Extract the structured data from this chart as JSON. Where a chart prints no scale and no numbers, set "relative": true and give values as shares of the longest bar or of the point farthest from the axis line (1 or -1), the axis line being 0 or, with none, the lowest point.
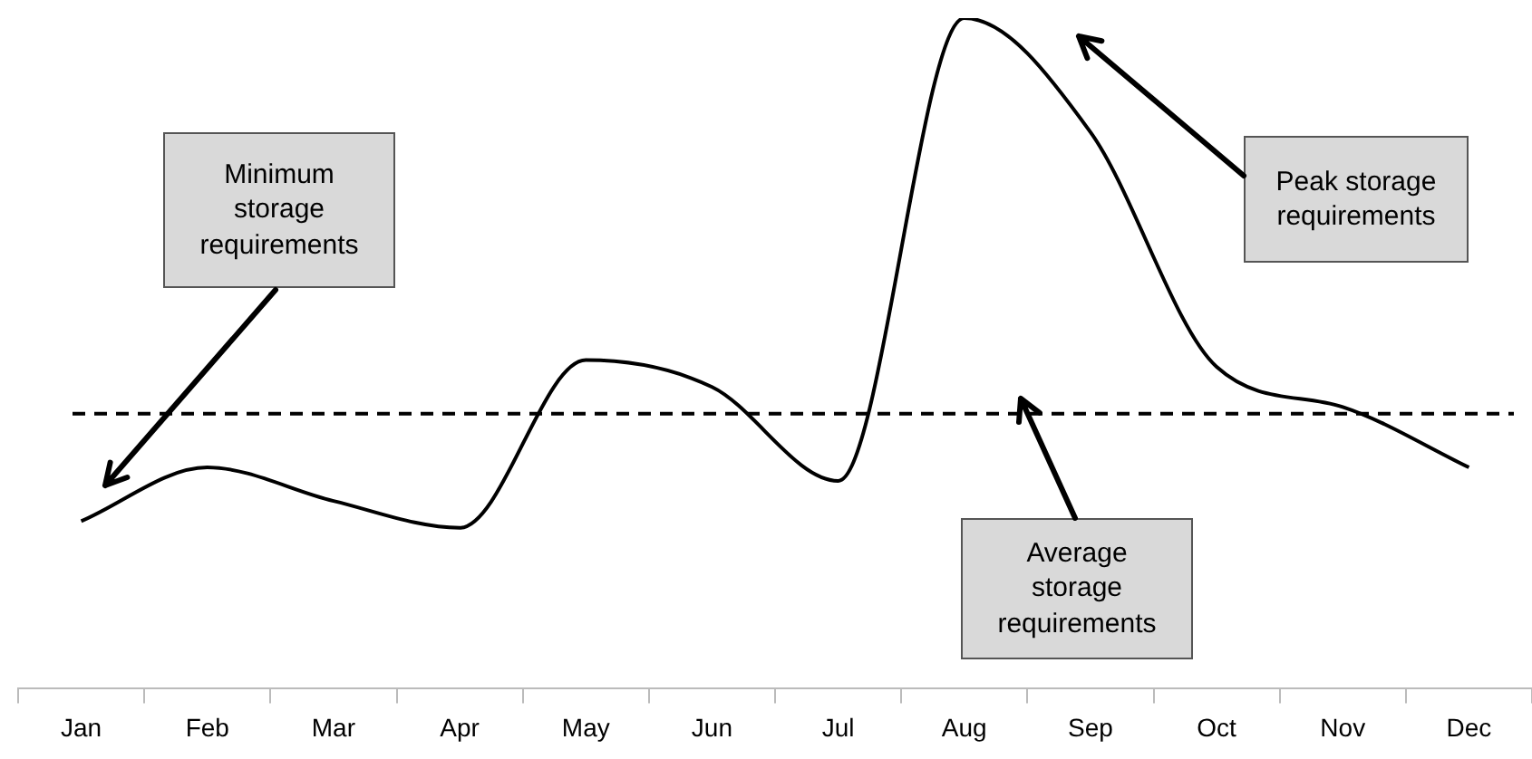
{
  "chart_data": {
    "type": "line",
    "relative": true,
    "categories": [
      "Jan",
      "Feb",
      "Mar",
      "Apr",
      "May",
      "Jun",
      "Jul",
      "Aug",
      "Sep",
      "Oct",
      "Nov",
      "Dec"
    ],
    "series": [
      {
        "color": "#000000",
        "values": [
          0.25,
          0.33,
          0.28,
          0.24,
          0.49,
          0.45,
          0.31,
          1,
          0.83,
          0.48,
          0.42,
          0.33
        ]
      }
    ],
    "ref_lines": [
      {
        "axis": "y",
        "value": 0.41,
        "color": "#000000",
        "line_style": "dashed"
      }
    ],
    "annotations": [
      "Minimum storage requirements",
      "Peak storage requirements",
      "Average storage requirements"
    ],
    "grid": false,
    "legend": false,
    "marker": "none",
    "line_style": "solid"
  }
}
